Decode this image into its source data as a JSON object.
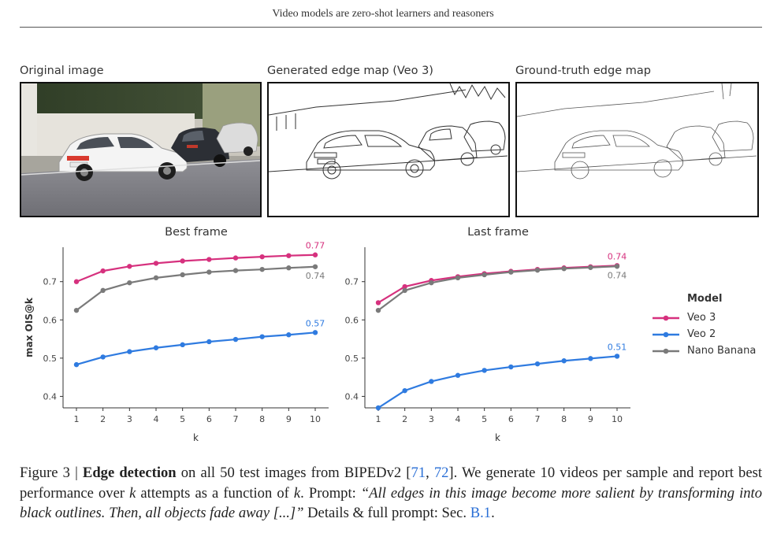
{
  "header": {
    "running_title": "Video models are zero-shot learners and reasoners"
  },
  "panels": [
    {
      "label": "Original image"
    },
    {
      "label": "Generated edge map (Veo 3)"
    },
    {
      "label": "Ground-truth edge map"
    }
  ],
  "legend": {
    "title": "Model",
    "items": [
      {
        "name": "Veo 3",
        "color": "#d6317e"
      },
      {
        "name": "Veo 2",
        "color": "#2f7be0"
      },
      {
        "name": "Nano Banana",
        "color": "#7a7a7a"
      }
    ]
  },
  "chart_data": [
    {
      "type": "line",
      "title": "Best frame",
      "xlabel": "k",
      "ylabel": "max OIS@k",
      "x": [
        1,
        2,
        3,
        4,
        5,
        6,
        7,
        8,
        9,
        10
      ],
      "ylim": [
        0.37,
        0.79
      ],
      "yticks": [
        0.4,
        0.5,
        0.6,
        0.7
      ],
      "grid": false,
      "series": [
        {
          "name": "Veo 3",
          "color": "#d6317e",
          "values": [
            0.7,
            0.728,
            0.74,
            0.748,
            0.754,
            0.758,
            0.762,
            0.765,
            0.768,
            0.77
          ],
          "end_label": "0.77"
        },
        {
          "name": "Nano Banana",
          "color": "#7a7a7a",
          "values": [
            0.625,
            0.677,
            0.697,
            0.71,
            0.718,
            0.725,
            0.729,
            0.732,
            0.736,
            0.739
          ],
          "end_label": "0.74"
        },
        {
          "name": "Veo 2",
          "color": "#2f7be0",
          "values": [
            0.483,
            0.503,
            0.517,
            0.527,
            0.535,
            0.543,
            0.549,
            0.556,
            0.561,
            0.567
          ],
          "end_label": "0.57"
        }
      ]
    },
    {
      "type": "line",
      "title": "Last frame",
      "xlabel": "k",
      "ylabel": "",
      "x": [
        1,
        2,
        3,
        4,
        5,
        6,
        7,
        8,
        9,
        10
      ],
      "ylim": [
        0.37,
        0.79
      ],
      "yticks": [
        0.4,
        0.5,
        0.6,
        0.7
      ],
      "grid": false,
      "series": [
        {
          "name": "Veo 3",
          "color": "#d6317e",
          "values": [
            0.645,
            0.687,
            0.703,
            0.713,
            0.721,
            0.727,
            0.732,
            0.736,
            0.739,
            0.742
          ],
          "end_label": "0.74"
        },
        {
          "name": "Nano Banana",
          "color": "#7a7a7a",
          "values": [
            0.625,
            0.677,
            0.697,
            0.71,
            0.718,
            0.725,
            0.73,
            0.734,
            0.737,
            0.74
          ],
          "end_label": "0.74"
        },
        {
          "name": "Veo 2",
          "color": "#2f7be0",
          "values": [
            0.37,
            0.415,
            0.439,
            0.455,
            0.468,
            0.477,
            0.485,
            0.493,
            0.499,
            0.505
          ],
          "end_label": "0.51"
        }
      ]
    }
  ],
  "caption": {
    "fig": "Figure 3 | ",
    "bold": "Edge detection",
    "t1": " on all 50 test images from BIPEDv2 [",
    "c1": "71",
    "t2": ", ",
    "c2": "72",
    "t3": "]. We generate 10 videos per sample and report best performance over ",
    "k1": "k",
    "t4": " attempts as a function of ",
    "k2": "k",
    "t5": ". Prompt: ",
    "prompt": "“All edges in this image become more salient by transforming into black outlines. Then, all objects fade away [...]”",
    "t6": " Details & full prompt: Sec. ",
    "sec": "B.1",
    "t7": "."
  }
}
